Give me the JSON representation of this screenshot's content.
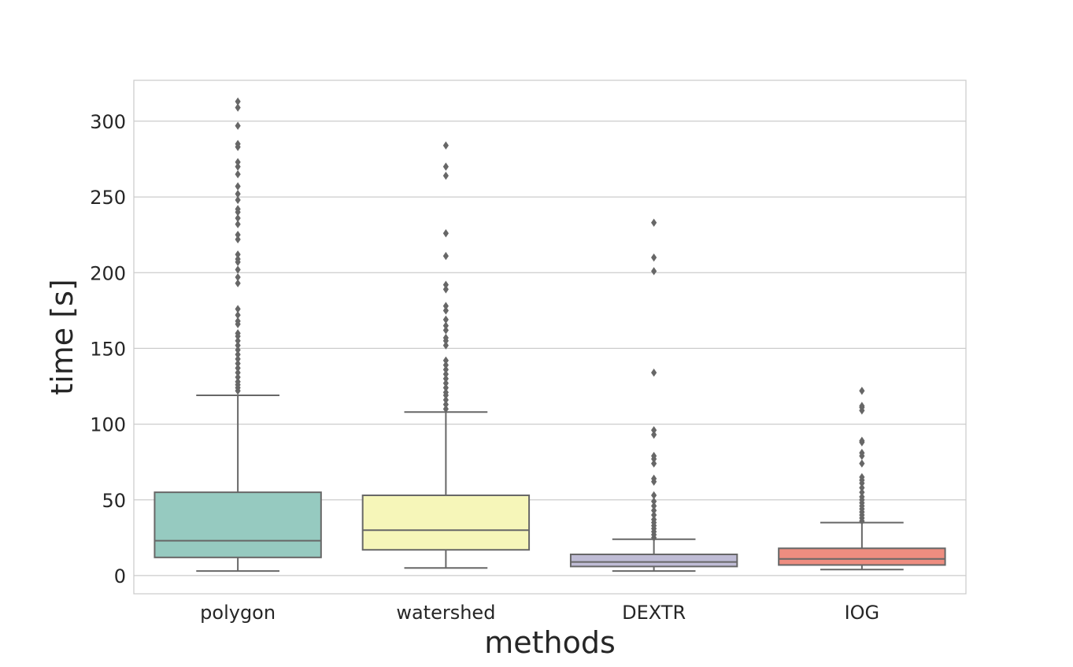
{
  "chart_data": {
    "type": "boxplot",
    "xlabel": "methods",
    "ylabel": "time [s]",
    "ylim": [
      -12,
      327
    ],
    "yticks": [
      0,
      50,
      100,
      150,
      200,
      250,
      300
    ],
    "grid": "horizontal",
    "categories": [
      "polygon",
      "watershed",
      "DEXTR",
      "IOG"
    ],
    "boxes": [
      {
        "category": "polygon",
        "color": "#96cac0",
        "whisker_low": 3,
        "q1": 12,
        "median": 23,
        "q3": 55,
        "whisker_high": 119,
        "outliers": [
          122,
          124,
          126,
          128,
          131,
          134,
          137,
          140,
          143,
          146,
          149,
          152,
          155,
          158,
          160,
          166,
          168,
          172,
          176,
          193,
          197,
          202,
          207,
          209,
          212,
          222,
          225,
          232,
          236,
          240,
          242,
          248,
          252,
          257,
          265,
          270,
          273,
          283,
          285,
          297,
          309,
          313
        ]
      },
      {
        "category": "watershed",
        "color": "#f6f6b9",
        "whisker_low": 5,
        "q1": 17,
        "median": 30,
        "q3": 53,
        "whisker_high": 108,
        "outliers": [
          110,
          113,
          116,
          119,
          121,
          124,
          127,
          130,
          133,
          136,
          139,
          142,
          152,
          155,
          157,
          162,
          165,
          169,
          175,
          178,
          189,
          192,
          211,
          226,
          264,
          270,
          284
        ]
      },
      {
        "category": "DEXTR",
        "color": "#bfbcd5",
        "whisker_low": 3,
        "q1": 6,
        "median": 9,
        "q3": 14,
        "whisker_high": 24,
        "outliers": [
          25,
          27,
          29,
          31,
          33,
          35,
          37,
          40,
          43,
          46,
          49,
          53,
          62,
          64,
          74,
          77,
          79,
          93,
          96,
          134,
          201,
          210,
          233
        ]
      },
      {
        "category": "IOG",
        "color": "#ee8d80",
        "whisker_low": 4,
        "q1": 7,
        "median": 11,
        "q3": 18,
        "whisker_high": 35,
        "outliers": [
          36,
          38,
          40,
          42,
          44,
          46,
          48,
          50,
          52,
          55,
          58,
          61,
          63,
          65,
          74,
          79,
          81,
          88,
          89,
          109,
          111,
          112,
          122
        ]
      }
    ]
  }
}
